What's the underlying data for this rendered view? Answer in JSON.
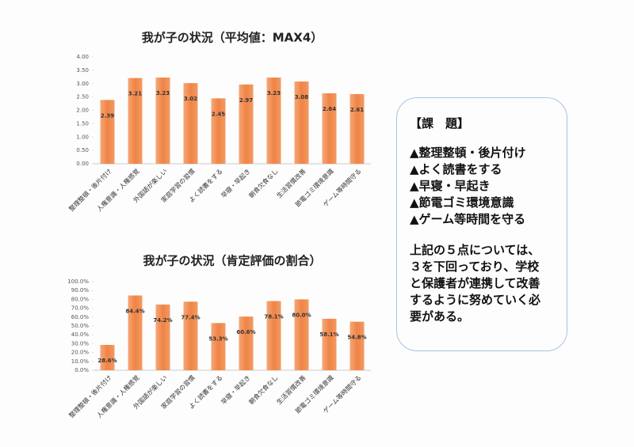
{
  "chart_data": [
    {
      "type": "bar",
      "title": "我が子の状況（平均値：MAX4）",
      "categories": [
        "整理整頓・後片付け",
        "人権意識・人権感覚",
        "外国語が楽しい",
        "家庭学習の習慣",
        "よく読書をする",
        "早寝・早起き",
        "朝食欠食なし",
        "生活習慣改善",
        "節電ゴミ環境意識",
        "ゲーム等時間守る"
      ],
      "values": [
        2.39,
        3.21,
        3.23,
        3.02,
        2.45,
        2.97,
        3.23,
        3.08,
        2.64,
        2.61
      ],
      "value_labels": [
        "2.39",
        "3.21",
        "3.23",
        "3.02",
        "2.45",
        "2.97",
        "3.23",
        "3.08",
        "2.64",
        "2.61"
      ],
      "color": "#f0884a",
      "ylim": [
        0,
        4
      ],
      "yticks": [
        {
          "value": 0,
          "label": "0.00"
        },
        {
          "value": 0.5,
          "label": "0.50"
        },
        {
          "value": 1,
          "label": "1.00"
        },
        {
          "value": 1.5,
          "label": "1.50"
        },
        {
          "value": 2,
          "label": "2.00"
        },
        {
          "value": 2.5,
          "label": "2.50"
        },
        {
          "value": 3,
          "label": "3.00"
        },
        {
          "value": 3.5,
          "label": "3.50"
        },
        {
          "value": 4,
          "label": "4.00"
        }
      ]
    },
    {
      "type": "bar",
      "title": "我が子の状況（肯定評価の割合）",
      "categories": [
        "整理整頓・後片付け",
        "人権意識・人権感覚",
        "外国語が楽しい",
        "家庭学習の習慣",
        "よく読書をする",
        "早寝・早起き",
        "朝食欠食なし",
        "生活習慣改善",
        "節電ゴミ環境意識",
        "ゲーム等時間守る"
      ],
      "values": [
        28.6,
        84.4,
        74.2,
        77.4,
        53.3,
        60.6,
        78.1,
        80.0,
        58.1,
        54.8
      ],
      "value_labels": [
        "28.6%",
        "84.4%",
        "74.2%",
        "77.4%",
        "53.3%",
        "60.6%",
        "78.1%",
        "80.0%",
        "58.1%",
        "54.8%"
      ],
      "color": "#f0884a",
      "ylim": [
        0,
        100
      ],
      "yticks": [
        {
          "value": 0,
          "label": "0.0%"
        },
        {
          "value": 10,
          "label": "10.0%"
        },
        {
          "value": 20,
          "label": "20.0%"
        },
        {
          "value": 30,
          "label": "30.0%"
        },
        {
          "value": 40,
          "label": "40.0%"
        },
        {
          "value": 50,
          "label": "50.0%"
        },
        {
          "value": 60,
          "label": "60.0%"
        },
        {
          "value": 70,
          "label": "70.0%"
        },
        {
          "value": 80,
          "label": "80.0%"
        },
        {
          "value": 90,
          "label": "90.0%"
        },
        {
          "value": 100,
          "label": "100.0%"
        }
      ]
    }
  ],
  "note": {
    "heading": "【課　題】",
    "items": [
      "▲整理整頓・後片付け",
      "▲よく読書をする",
      "▲早寝・早起き",
      "▲節電ゴミ環境意識",
      "▲ゲーム等時間を守る"
    ],
    "body_lines": [
      "上記の５点については、",
      "３を下回っており、学校",
      "と保護者が連携して改善",
      "するように努めていく必",
      "要がある。"
    ]
  }
}
